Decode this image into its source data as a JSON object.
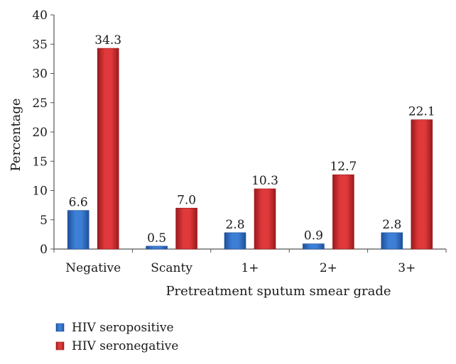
{
  "chart_data": {
    "type": "bar",
    "categories": [
      "Negative",
      "Scanty",
      "1+",
      "2+",
      "3+"
    ],
    "series": [
      {
        "name": "HIV seropositive",
        "values": [
          6.6,
          0.5,
          2.8,
          0.9,
          2.8
        ],
        "labels": [
          "6.6",
          "0.5",
          "2.8",
          "0.9",
          "2.8"
        ],
        "color": "#3d7fd6",
        "dark": "#1f4f9a"
      },
      {
        "name": "HIV seronegative",
        "values": [
          34.3,
          7.0,
          10.3,
          12.7,
          22.1
        ],
        "labels": [
          "34.3",
          "7.0",
          "10.3",
          "12.7",
          "22.1"
        ],
        "color": "#e0393c",
        "dark": "#9a1a1c"
      }
    ],
    "title": "",
    "xlabel": "Pretreatment sputum smear grade",
    "ylabel": "Percentage",
    "ylim": [
      0,
      40
    ],
    "yticks": [
      "0",
      "5",
      "10",
      "15",
      "20",
      "25",
      "30",
      "35",
      "40"
    ],
    "grid": false,
    "legend_position": "bottom-left"
  }
}
